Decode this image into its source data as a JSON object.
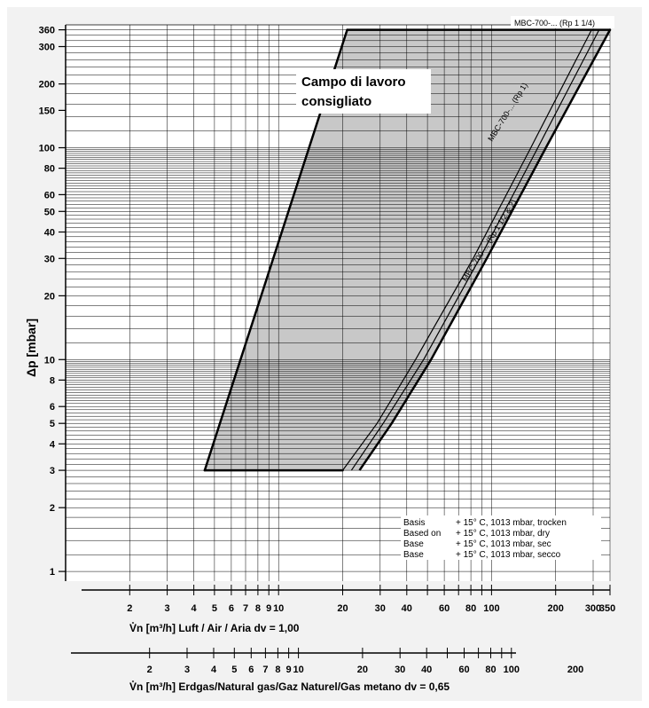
{
  "chart_data": {
    "type": "line",
    "title": "",
    "x_scale": "log",
    "y_scale": "log",
    "xlabel": "V̊n [m³/h] Luft / Air / Aria dv = 1,00",
    "xlabel2": "V̊n [m³/h] Erdgas/Natural gas/Gaz Naturel/Gas metano dv = 0,65",
    "ylabel": "Δp [mbar]",
    "xlim": [
      1,
      360
    ],
    "ylim": [
      0.9,
      380
    ],
    "y_ticks": [
      1,
      2,
      3,
      4,
      5,
      6,
      8,
      10,
      20,
      30,
      40,
      50,
      60,
      80,
      100,
      150,
      200,
      300,
      360
    ],
    "y_tick_labels": [
      "1",
      "2",
      "3",
      "4",
      "5",
      "6",
      "8",
      "10",
      "20",
      "30",
      "40",
      "50",
      "60",
      "80",
      "100",
      "150",
      "200",
      "300",
      "360"
    ],
    "x_ticks": [
      2,
      3,
      4,
      5,
      6,
      7,
      8,
      9,
      10,
      20,
      30,
      40,
      60,
      80,
      100,
      200,
      300,
      350
    ],
    "x_tick_labels": [
      "2",
      "3",
      "4",
      "5",
      "6",
      "7",
      "8",
      "9",
      "10",
      "20",
      "30",
      "40",
      "60",
      "80",
      "100",
      "200",
      "300",
      "350"
    ],
    "x2_ticks": [
      2,
      3,
      4,
      5,
      6,
      7,
      8,
      9,
      10,
      20,
      30,
      40,
      60,
      80,
      100,
      200
    ],
    "x2_tick_labels": [
      "2",
      "3",
      "4",
      "5",
      "6",
      "7",
      "8",
      "9",
      "10",
      "20",
      "30",
      "40",
      "60",
      "80",
      "100",
      "200"
    ],
    "x2_conversion_factor": 1.24,
    "grid": true,
    "grid_color": "#000000",
    "fill_color": "#c8c8c8",
    "series": [
      {
        "name": "MBC-700-... (Rp 1 1/2 & 2)",
        "x": [
          24,
          34,
          52,
          95,
          180,
          360
        ],
        "y": [
          3,
          5,
          10,
          30,
          100,
          360
        ]
      },
      {
        "name": "MBC-700-... (Rp 1)",
        "x": [
          22,
          31,
          48,
          88,
          165,
          320
        ],
        "y": [
          3,
          5,
          10,
          30,
          100,
          360
        ]
      },
      {
        "name": "MBC-700-... (Rp 1 1/4)",
        "x": [
          20,
          29,
          44,
          82,
          153,
          295
        ],
        "y": [
          3,
          5,
          10,
          30,
          100,
          360
        ]
      }
    ],
    "region": {
      "name": "Campo di lavoro consigliato",
      "boundary_x": [
        4.5,
        20,
        24,
        34,
        52,
        95,
        180,
        360,
        21
      ],
      "boundary_y": [
        3,
        3,
        3,
        5,
        10,
        30,
        100,
        360,
        360
      ]
    },
    "annotations": {
      "region_label_line1": "Campo di lavoro",
      "region_label_line2": "consigliato",
      "label_rp114": "MBC-700-... (Rp 1 1/4)",
      "label_rp1": "MBC-700-... (Rp 1)",
      "label_rp112": "MBC-700-... (Rp 1 1/2 & 2)"
    },
    "note": [
      {
        "key": "Basis",
        "value": "+ 15° C, 1013 mbar, trocken"
      },
      {
        "key": "Based on",
        "value": "+ 15° C, 1013 mbar, dry"
      },
      {
        "key": "Base",
        "value": "+ 15° C, 1013 mbar, sec"
      },
      {
        "key": "Base",
        "value": "+ 15° C, 1013 mbar, secco"
      }
    ]
  }
}
